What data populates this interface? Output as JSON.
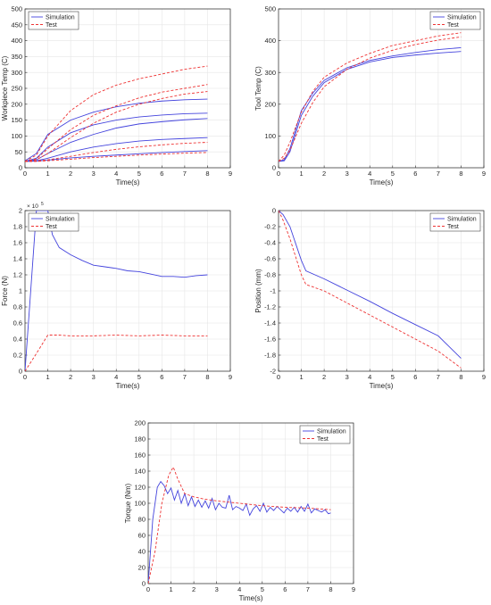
{
  "colors": {
    "simulation": "#4444dd",
    "test": "#ee3333",
    "grid": "#e6e6e6",
    "axis": "#262626"
  },
  "chart_data": [
    {
      "id": "workpiece-temp",
      "type": "line",
      "xlabel": "Time(s)",
      "ylabel": "Workpiece Temp (C)",
      "xlim": [
        0,
        9
      ],
      "ylim": [
        0,
        500
      ],
      "xticks": [
        "0",
        "1",
        "2",
        "3",
        "4",
        "5",
        "6",
        "7",
        "8",
        "9"
      ],
      "yticks": [
        "0",
        "50",
        "100",
        "150",
        "200",
        "250",
        "300",
        "350",
        "400",
        "450",
        "500"
      ],
      "grid": true,
      "legend": {
        "position": "top-left",
        "entries": [
          "Simulation",
          "Test"
        ]
      },
      "series": [
        {
          "name": "Simulation",
          "style": "solid",
          "x": [
            0,
            0.5,
            1,
            2,
            3,
            4,
            5,
            6,
            7,
            8
          ],
          "y": [
            22,
            45,
            105,
            150,
            175,
            192,
            203,
            210,
            214,
            216
          ]
        },
        {
          "style": "solid",
          "x": [
            0,
            0.5,
            1,
            2,
            3,
            4,
            5,
            6,
            7,
            8
          ],
          "y": [
            20,
            30,
            65,
            110,
            135,
            150,
            160,
            166,
            170,
            172
          ]
        },
        {
          "style": "solid",
          "x": [
            0,
            0.5,
            1,
            2,
            3,
            4,
            5,
            6,
            7,
            8
          ],
          "y": [
            20,
            25,
            45,
            80,
            105,
            125,
            138,
            145,
            151,
            155
          ]
        },
        {
          "style": "solid",
          "x": [
            0,
            0.5,
            1,
            2,
            3,
            4,
            5,
            6,
            7,
            8
          ],
          "y": [
            20,
            22,
            30,
            50,
            65,
            76,
            84,
            89,
            92,
            95
          ]
        },
        {
          "style": "solid",
          "x": [
            0,
            0.5,
            1,
            2,
            3,
            4,
            5,
            6,
            7,
            8
          ],
          "y": [
            20,
            21,
            24,
            31,
            36,
            40,
            44,
            48,
            51,
            54
          ]
        },
        {
          "name": "Test",
          "style": "dashed",
          "x": [
            0,
            0.5,
            1,
            2,
            3,
            4,
            5,
            6,
            7,
            8
          ],
          "y": [
            20,
            40,
            100,
            180,
            230,
            260,
            280,
            295,
            310,
            320
          ]
        },
        {
          "style": "dashed",
          "x": [
            0,
            0.5,
            1,
            2,
            3,
            4,
            5,
            6,
            7,
            8
          ],
          "y": [
            20,
            28,
            60,
            120,
            165,
            195,
            220,
            238,
            250,
            262
          ]
        },
        {
          "style": "dashed",
          "x": [
            0,
            0.5,
            1,
            2,
            3,
            4,
            5,
            6,
            7,
            8
          ],
          "y": [
            20,
            25,
            45,
            95,
            140,
            175,
            200,
            218,
            232,
            240
          ]
        },
        {
          "style": "dashed",
          "x": [
            0,
            0.5,
            1,
            2,
            3,
            4,
            5,
            6,
            7,
            8
          ],
          "y": [
            20,
            21,
            25,
            36,
            48,
            58,
            66,
            72,
            77,
            80
          ]
        },
        {
          "style": "dashed",
          "x": [
            0,
            0.5,
            1,
            2,
            3,
            4,
            5,
            6,
            7,
            8
          ],
          "y": [
            20,
            20,
            22,
            27,
            32,
            36,
            40,
            43,
            46,
            48
          ]
        }
      ]
    },
    {
      "id": "tool-temp",
      "type": "line",
      "xlabel": "Time(s)",
      "ylabel": "Tool Temp (C)",
      "xlim": [
        0,
        9
      ],
      "ylim": [
        0,
        500
      ],
      "xticks": [
        "0",
        "1",
        "2",
        "3",
        "4",
        "5",
        "6",
        "7",
        "8",
        "9"
      ],
      "yticks": [
        "0",
        "100",
        "200",
        "300",
        "400",
        "500"
      ],
      "grid": true,
      "legend": {
        "position": "top-right",
        "entries": [
          "Simulation",
          "Test"
        ]
      },
      "series": [
        {
          "name": "Simulation",
          "style": "solid",
          "x": [
            0,
            0.25,
            0.5,
            1,
            1.5,
            2,
            3,
            4,
            5,
            6,
            7,
            8
          ],
          "y": [
            20,
            25,
            60,
            180,
            235,
            275,
            315,
            338,
            352,
            363,
            372,
            378
          ]
        },
        {
          "style": "solid",
          "x": [
            0,
            0.25,
            0.5,
            1,
            1.5,
            2,
            3,
            4,
            5,
            6,
            7,
            8
          ],
          "y": [
            20,
            22,
            50,
            165,
            225,
            268,
            310,
            333,
            347,
            355,
            361,
            366
          ]
        },
        {
          "name": "Test",
          "style": "dashed",
          "x": [
            0,
            0.25,
            0.5,
            1,
            1.5,
            2,
            3,
            4,
            5,
            6,
            7,
            8
          ],
          "y": [
            20,
            40,
            80,
            175,
            240,
            285,
            330,
            360,
            385,
            400,
            415,
            425
          ]
        },
        {
          "style": "dashed",
          "x": [
            0,
            0.25,
            0.5,
            1,
            1.5,
            2,
            3,
            4,
            5,
            6,
            7,
            8
          ],
          "y": [
            20,
            30,
            55,
            140,
            205,
            255,
            310,
            345,
            370,
            388,
            402,
            412
          ]
        }
      ]
    },
    {
      "id": "force",
      "type": "line",
      "xlabel": "Time(s)",
      "ylabel": "Force (N)",
      "exponent": "× 10",
      "exponent_power": "5",
      "xlim": [
        0,
        9
      ],
      "ylim": [
        0,
        2
      ],
      "xticks": [
        "0",
        "1",
        "2",
        "3",
        "4",
        "5",
        "6",
        "7",
        "8",
        "9"
      ],
      "yticks": [
        "0",
        "0.2",
        "0.4",
        "0.6",
        "0.8",
        "1",
        "1.2",
        "1.4",
        "1.6",
        "1.8",
        "2"
      ],
      "grid": true,
      "legend": {
        "position": "top-left",
        "entries": [
          "Simulation",
          "Test"
        ]
      },
      "series": [
        {
          "name": "Simulation",
          "style": "solid",
          "x": [
            0,
            0.3,
            0.5,
            0.7,
            1,
            1.2,
            1.5,
            2,
            2.5,
            3,
            3.5,
            4,
            4.5,
            5,
            5.5,
            6,
            6.5,
            7,
            7.5,
            8
          ],
          "y": [
            0,
            1.2,
            2.0,
            2.0,
            2.0,
            1.7,
            1.54,
            1.45,
            1.38,
            1.32,
            1.3,
            1.28,
            1.25,
            1.24,
            1.21,
            1.18,
            1.18,
            1.17,
            1.19,
            1.2
          ]
        },
        {
          "name": "Test",
          "style": "dashed",
          "x": [
            0,
            0.5,
            1,
            1.5,
            2,
            3,
            4,
            5,
            6,
            7,
            8
          ],
          "y": [
            0,
            0.22,
            0.45,
            0.45,
            0.44,
            0.44,
            0.45,
            0.44,
            0.45,
            0.44,
            0.44
          ]
        }
      ]
    },
    {
      "id": "position",
      "type": "line",
      "xlabel": "Time(s)",
      "ylabel": "Position (mm)",
      "xlim": [
        0,
        9
      ],
      "ylim": [
        -2,
        0
      ],
      "xticks": [
        "0",
        "1",
        "2",
        "3",
        "4",
        "5",
        "6",
        "7",
        "8",
        "9"
      ],
      "yticks": [
        "0",
        "-0.2",
        "-0.4",
        "-0.6",
        "-0.8",
        "-1",
        "-1.2",
        "-1.4",
        "-1.6",
        "-1.8",
        "-2"
      ],
      "grid": true,
      "legend": {
        "position": "top-right",
        "entries": [
          "Simulation",
          "Test"
        ]
      },
      "series": [
        {
          "name": "Simulation",
          "style": "solid",
          "x": [
            0,
            0.2,
            0.5,
            1,
            1.2,
            2,
            3,
            4,
            5,
            6,
            7,
            8
          ],
          "y": [
            0,
            -0.05,
            -0.2,
            -0.62,
            -0.75,
            -0.85,
            -0.99,
            -1.13,
            -1.28,
            -1.42,
            -1.56,
            -1.84
          ]
        },
        {
          "name": "Test",
          "style": "dashed",
          "x": [
            0,
            0.2,
            0.5,
            1,
            1.2,
            2,
            3,
            4,
            5,
            6,
            7,
            8
          ],
          "y": [
            0,
            -0.12,
            -0.35,
            -0.8,
            -0.92,
            -1.0,
            -1.15,
            -1.3,
            -1.45,
            -1.6,
            -1.75,
            -1.96
          ]
        }
      ]
    },
    {
      "id": "torque",
      "type": "line",
      "xlabel": "Time(s)",
      "ylabel": "Torque (Nm)",
      "xlim": [
        0,
        9
      ],
      "ylim": [
        0,
        200
      ],
      "xticks": [
        "0",
        "1",
        "2",
        "3",
        "4",
        "5",
        "6",
        "7",
        "8",
        "9"
      ],
      "yticks": [
        "0",
        "20",
        "40",
        "60",
        "80",
        "100",
        "120",
        "140",
        "160",
        "180",
        "200"
      ],
      "grid": true,
      "legend": {
        "position": "top-right",
        "entries": [
          "Simulation",
          "Test"
        ]
      },
      "series": [
        {
          "name": "Simulation",
          "style": "solid",
          "x": [
            0,
            0.2,
            0.4,
            0.55,
            0.7,
            0.85,
            1,
            1.15,
            1.3,
            1.45,
            1.6,
            1.75,
            1.9,
            2.05,
            2.2,
            2.35,
            2.5,
            2.65,
            2.8,
            2.95,
            3.1,
            3.25,
            3.4,
            3.55,
            3.7,
            3.85,
            4,
            4.15,
            4.3,
            4.45,
            4.6,
            4.75,
            4.9,
            5.05,
            5.2,
            5.35,
            5.5,
            5.65,
            5.8,
            5.95,
            6.1,
            6.25,
            6.4,
            6.55,
            6.7,
            6.85,
            7,
            7.15,
            7.3,
            7.45,
            7.6,
            7.75,
            7.9,
            8
          ],
          "y": [
            0,
            80,
            120,
            127,
            122,
            112,
            119,
            104,
            116,
            100,
            112,
            97,
            108,
            96,
            104,
            95,
            103,
            94,
            106,
            92,
            100,
            95,
            94,
            110,
            92,
            96,
            94,
            91,
            99,
            85,
            93,
            97,
            90,
            100,
            89,
            95,
            91,
            96,
            92,
            88,
            94,
            90,
            95,
            89,
            96,
            90,
            99,
            88,
            93,
            91,
            89,
            92,
            87,
            88
          ]
        },
        {
          "name": "Test",
          "style": "dashed",
          "x": [
            0,
            0.3,
            0.6,
            0.9,
            1.1,
            1.3,
            1.6,
            2,
            2.5,
            3,
            4,
            5,
            6,
            7,
            8
          ],
          "y": [
            0,
            40,
            100,
            135,
            145,
            130,
            112,
            108,
            105,
            103,
            100,
            97,
            95,
            94,
            92
          ]
        }
      ]
    }
  ]
}
